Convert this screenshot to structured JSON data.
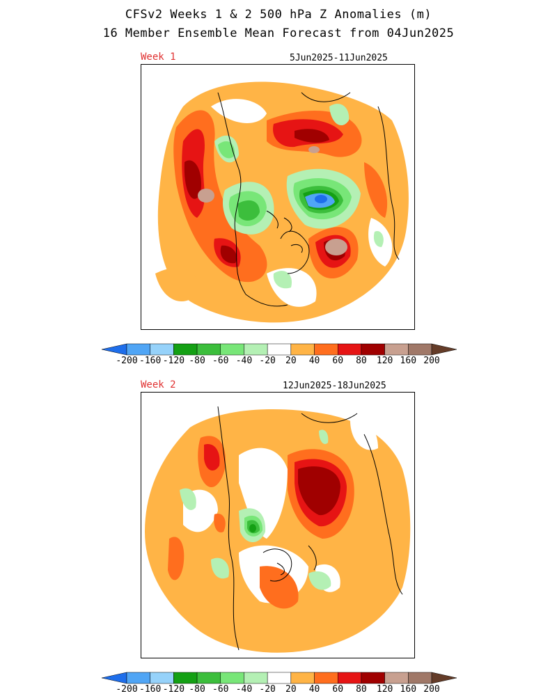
{
  "header": {
    "title_line1": "CFSv2 Weeks 1 & 2 500 hPa Z Anomalies (m)",
    "title_line2": "16 Member Ensemble Mean Forecast from 04Jun2025"
  },
  "panels": [
    {
      "week_label": "Week 1",
      "date_range": "5Jun2025-11Jun2025"
    },
    {
      "week_label": "Week 2",
      "date_range": "12Jun2025-18Jun2025"
    }
  ],
  "colorbar": {
    "colors": [
      "#1e6eeb",
      "#50a5f5",
      "#96d2fa",
      "#14a014",
      "#3cbe3c",
      "#78e678",
      "#b4f0b4",
      "#ffffff",
      "#ffb446",
      "#ff6e1e",
      "#e61414",
      "#a00000",
      "#c8a090",
      "#a07868",
      "#643c28"
    ],
    "labels": [
      "-200",
      "-160",
      "-120",
      "-80",
      "-60",
      "-40",
      "-20",
      "20",
      "40",
      "60",
      "80",
      "120",
      "160",
      "200"
    ]
  },
  "legend_levels": {
    "pos1": "#ffb446",
    "pos2": "#ff6e1e",
    "pos3": "#e61414",
    "pos4": "#a00000",
    "pos5": "#c8a090",
    "neg1": "#b4f0b4",
    "neg2": "#78e678",
    "neg3": "#3cbe3c",
    "neg4": "#14a014",
    "neg5": "#50a5f5",
    "neg6": "#1e6eeb"
  }
}
